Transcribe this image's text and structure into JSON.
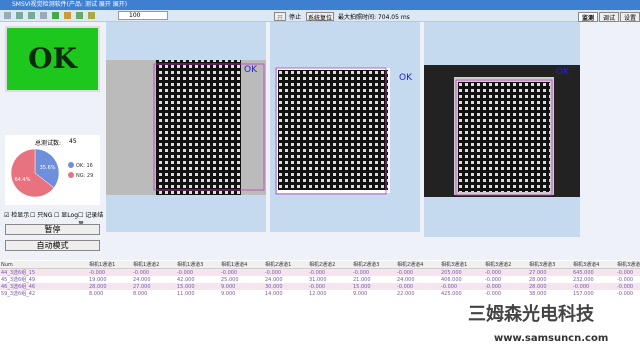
{
  "title_bar": "SMSVI视觉检测软件(产品: 测试 展开 展开)",
  "toolbar": {
    "input": "100"
  },
  "controls": {
    "start": "开始",
    "stop": "停止",
    "reset": "系统复位",
    "time_label": "最大拍照时间: 704.05 ms"
  },
  "tabs": [
    "监测",
    "调试",
    "设置"
  ],
  "result": "OK",
  "stats": {
    "total_label": "总测试数:",
    "total": 45,
    "slices": [
      {
        "name": "OK: 16",
        "count": 16,
        "percent": "35.6%",
        "color": "#6d8fdc"
      },
      {
        "name": "NG: 29",
        "count": 29,
        "percent": "64.4%",
        "color": "#e8737e"
      }
    ]
  },
  "checkboxes": [
    "检显示",
    "只NG",
    "显Log",
    "记录结果"
  ],
  "buttons": [
    "暂停",
    "自动模式"
  ],
  "image_labels": [
    "OK",
    "OK",
    "OK"
  ],
  "table": {
    "columns": [
      "Num",
      "相机1通道1",
      "相机1通道2",
      "相机1通道3",
      "相机1通道4",
      "相机2通道1",
      "相机2通道2",
      "相机2通道3",
      "相机2通道4",
      "相机3通道1",
      "相机3通道2",
      "相机3通道3",
      "相机3通道4",
      "相机3通道5"
    ],
    "rows": [
      [
        "44_3选6组_15",
        "-0.000",
        "-0.000",
        "-0.000",
        "-0.000",
        "-0.000",
        "-0.000",
        "-0.000",
        "-0.000",
        "205.000",
        "-0.000",
        "27.000",
        "645.000",
        "-0.000"
      ],
      [
        "45_3选6组_49",
        "19.000",
        "24.000",
        "42.000",
        "25.000",
        "24.000",
        "31.000",
        "21.000",
        "24.000",
        "406.000",
        "-0.000",
        "28.000",
        "232.000",
        "-0.000"
      ],
      [
        "46_3选6组_46",
        "28.000",
        "27.000",
        "15.000",
        "9.000",
        "30.000",
        "-0.000",
        "15.000",
        "-0.000",
        "-0.000",
        "-0.000",
        "28.000",
        "-0.000",
        "-0.000"
      ],
      [
        "59_3选6组_42",
        "8.000",
        "8.000",
        "11.000",
        "9.000",
        "14.000",
        "12.000",
        "9.000",
        "22.000",
        "425.000",
        "-0.000",
        "38.000",
        "157.000",
        "-0.000"
      ]
    ]
  },
  "watermark": {
    "brand": "三姆森光电科技",
    "url": "www.samsuncn.com"
  }
}
